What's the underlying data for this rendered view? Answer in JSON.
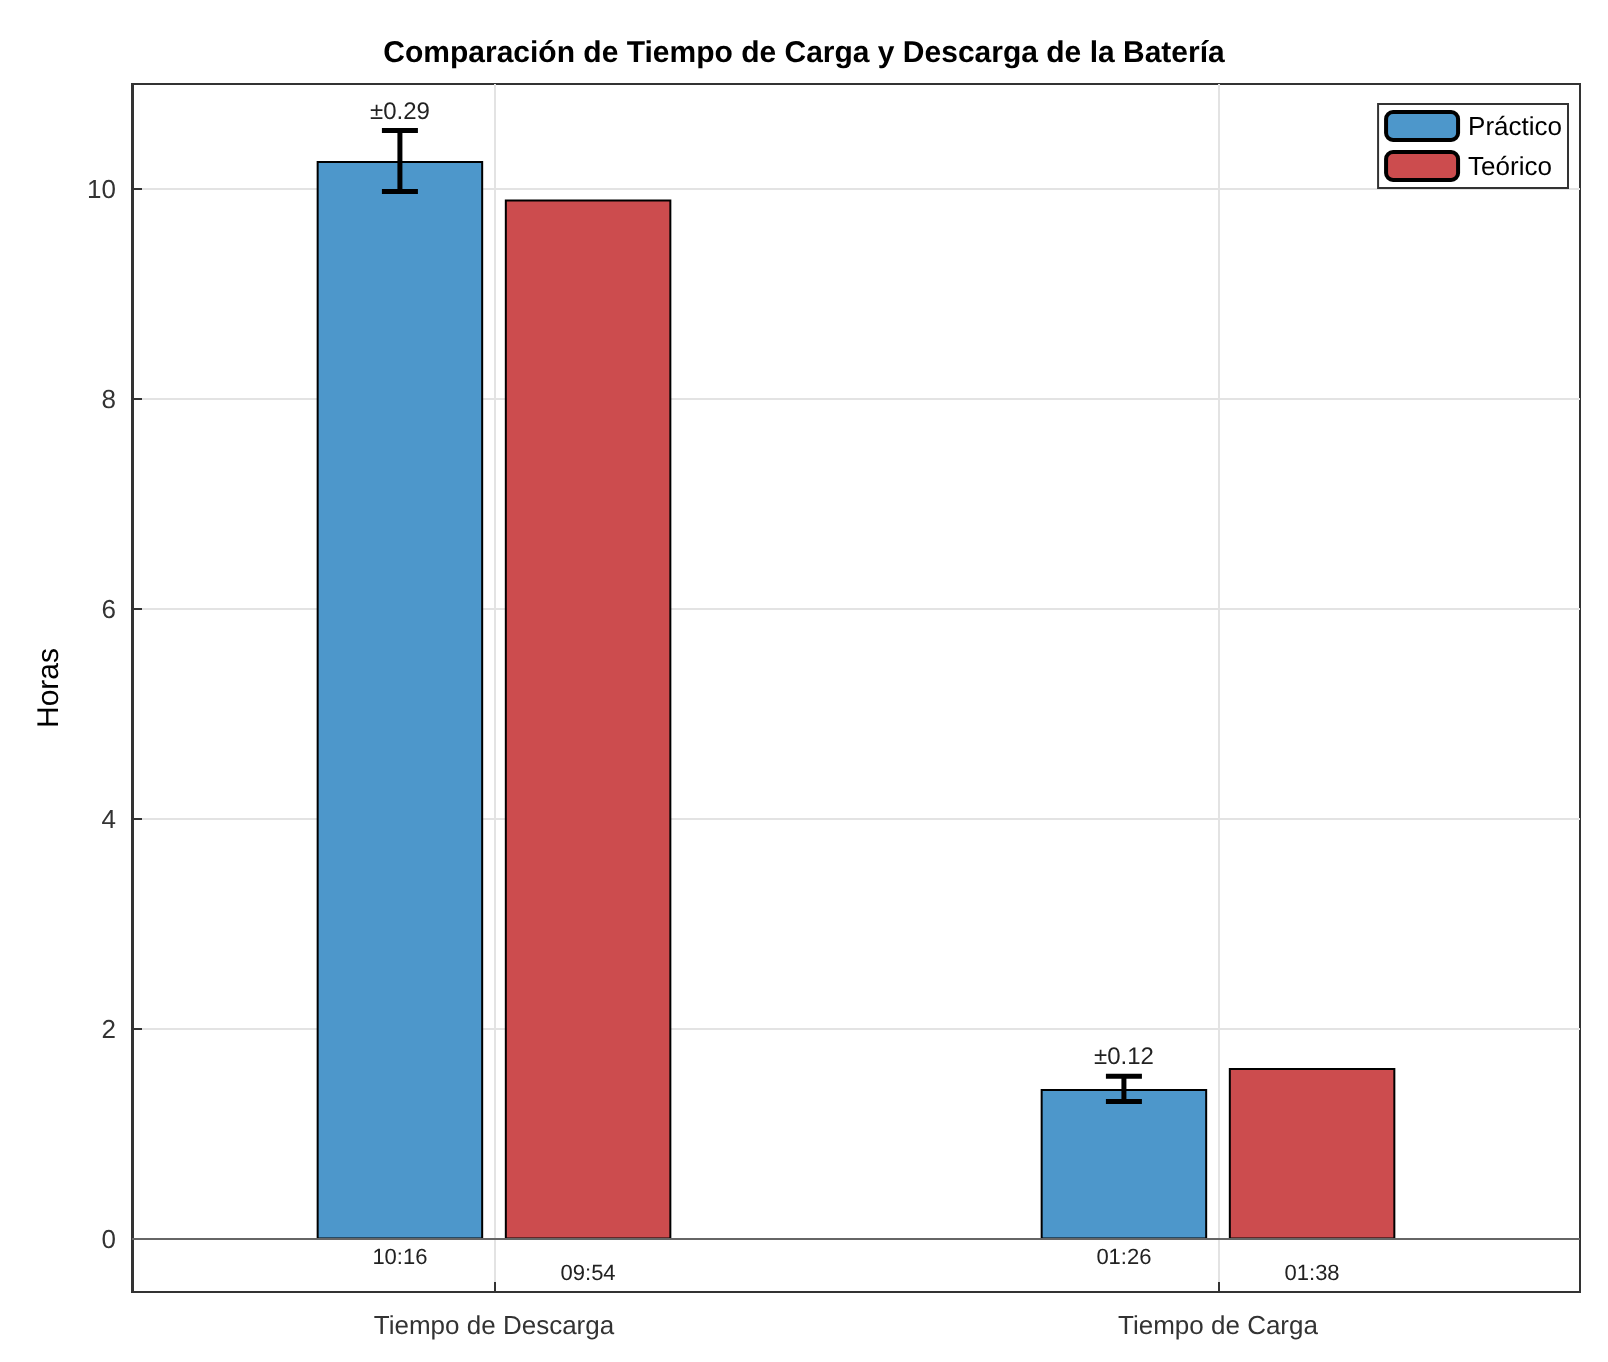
{
  "chart_data": {
    "type": "bar",
    "title": "Comparación de Tiempo de Carga y Descarga de la Batería",
    "ylabel": "Horas",
    "categories": [
      "Tiempo de Descarga",
      "Tiempo de Carga"
    ],
    "series": [
      {
        "name": "Práctico",
        "color": "#4d97cb",
        "values": [
          10.267,
          1.433
        ],
        "errors": [
          0.29,
          0.12
        ],
        "value_labels": [
          "10:16",
          "01:26"
        ]
      },
      {
        "name": "Teórico",
        "color": "#cc4c4e",
        "values": [
          9.9,
          1.633
        ],
        "value_labels": [
          "09:54",
          "01:38"
        ]
      }
    ],
    "annotations": [
      "±0.29",
      "±0.12"
    ],
    "ref_lines": [
      {
        "axis": "y",
        "value": 0,
        "color": "#666666"
      }
    ],
    "ylim": [
      -0.5,
      11
    ],
    "yticks": [
      0,
      2,
      4,
      6,
      8,
      10
    ],
    "grid": true,
    "legend": "top right"
  }
}
